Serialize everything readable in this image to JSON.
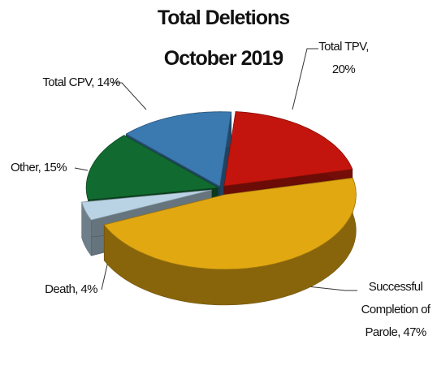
{
  "chart_data": {
    "type": "pie3d",
    "title": [
      "Total Deletions",
      "October 2019"
    ],
    "values": [
      20,
      47,
      4,
      15,
      14
    ],
    "value_labels": [
      "Total TPV, 20%",
      "Successful Completion of Parole, 47%",
      "Death, 4%",
      "Other, 15%",
      "Total CPV, 14%"
    ],
    "colors": [
      "#c3150d",
      "#e2a812",
      "#b9d3e4",
      "#116b30",
      "#3b7ab0"
    ]
  }
}
